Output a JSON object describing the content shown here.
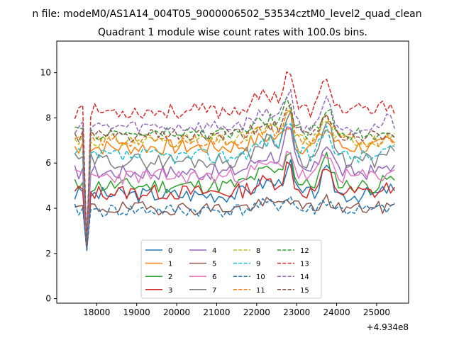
{
  "chart_data": {
    "type": "line",
    "suptitle": "n file: modeM0/AS1A14_004T05_9000006502_53534cztM0_level2_quad_clean",
    "title": "Quadrant 1 module wise count rates with 100.0s bins.",
    "xlabel": "",
    "ylabel": "",
    "x_offset_label": "+4.934e8",
    "xlim": [
      17000,
      25800
    ],
    "ylim": [
      -0.2,
      11.4
    ],
    "x_ticks": [
      18000,
      19000,
      20000,
      21000,
      22000,
      23000,
      24000,
      25000
    ],
    "y_ticks": [
      0,
      2,
      4,
      6,
      8,
      10
    ],
    "x_start": 17450,
    "x_step": 100,
    "n_points": 81,
    "grid": false,
    "legend_position": "lower center",
    "legend_columns": 4,
    "series": [
      {
        "name": "0",
        "color": "#1f77b4",
        "style": "solid",
        "base": 4.6,
        "a": 0.35,
        "k": 1.1,
        "seed": 3
      },
      {
        "name": "1",
        "color": "#ff7f0e",
        "style": "solid",
        "base": 6.7,
        "a": 0.35,
        "k": 0.9,
        "seed": 7
      },
      {
        "name": "2",
        "color": "#2ca02c",
        "style": "solid",
        "base": 5.0,
        "a": 0.35,
        "k": 1.3,
        "seed": 11
      },
      {
        "name": "3",
        "color": "#d62728",
        "style": "solid",
        "base": 4.7,
        "a": 0.35,
        "k": 1.0,
        "seed": 13
      },
      {
        "name": "4",
        "color": "#9467bd",
        "style": "solid",
        "base": 5.6,
        "a": 0.35,
        "k": 1.5,
        "seed": 17
      },
      {
        "name": "5",
        "color": "#8c564b",
        "style": "solid",
        "base": 4.0,
        "a": 0.3,
        "k": 0.4,
        "seed": 19
      },
      {
        "name": "6",
        "color": "#e377c2",
        "style": "solid",
        "base": 5.4,
        "a": 0.35,
        "k": 1.0,
        "seed": 23
      },
      {
        "name": "7",
        "color": "#7f7f7f",
        "style": "solid",
        "base": 6.1,
        "a": 0.35,
        "k": 1.8,
        "seed": 29
      },
      {
        "name": "8",
        "color": "#bcbd22",
        "style": "dashed",
        "base": 7.0,
        "a": 0.3,
        "k": 1.0,
        "seed": 31
      },
      {
        "name": "9",
        "color": "#17becf",
        "style": "dashed",
        "base": 6.3,
        "a": 0.35,
        "k": 1.4,
        "seed": 37
      },
      {
        "name": "10",
        "color": "#1f77b4",
        "style": "dashed",
        "base": 3.9,
        "a": 0.3,
        "k": 0.5,
        "seed": 41
      },
      {
        "name": "11",
        "color": "#ff7f0e",
        "style": "dashed",
        "base": 7.0,
        "a": 0.3,
        "k": 1.0,
        "seed": 43
      },
      {
        "name": "12",
        "color": "#2ca02c",
        "style": "dashed",
        "base": 7.3,
        "a": 0.3,
        "k": 1.2,
        "seed": 47
      },
      {
        "name": "13",
        "color": "#d62728",
        "style": "dashed",
        "base": 8.3,
        "a": 0.35,
        "k": 1.5,
        "seed": 53
      },
      {
        "name": "14",
        "color": "#9467bd",
        "style": "dashed",
        "base": 7.6,
        "a": 0.3,
        "k": 1.3,
        "seed": 59
      },
      {
        "name": "15",
        "color": "#8c564b",
        "style": "dashed",
        "base": 7.2,
        "a": 0.3,
        "k": 1.0,
        "seed": 61
      }
    ]
  }
}
